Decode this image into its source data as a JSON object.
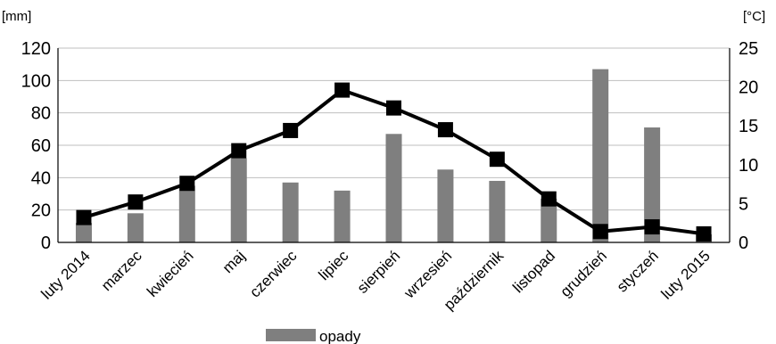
{
  "chart_data": {
    "type": "bar+line",
    "categories": [
      "luty 2014",
      "marzec",
      "kwiecień",
      "maj",
      "czerwiec",
      "lipiec",
      "sierpień",
      "wrzesień",
      "październik",
      "listopad",
      "grudzień",
      "styczeń",
      "luty 2015"
    ],
    "series": [
      {
        "name": "opady",
        "type": "bar",
        "axis": "left",
        "color": "#7f7f7f",
        "values": [
          12,
          18,
          35,
          52,
          37,
          32,
          67,
          45,
          38,
          27,
          107,
          71,
          5
        ]
      },
      {
        "type": "line",
        "axis": "right",
        "color": "#000000",
        "marker": "square",
        "values": [
          3.2,
          5.2,
          7.6,
          11.8,
          14.4,
          19.6,
          17.3,
          14.5,
          10.7,
          5.6,
          1.4,
          2.0,
          1.1
        ]
      }
    ],
    "y_left": {
      "unit": "[mm]",
      "ylim": [
        0,
        120
      ],
      "ticks": [
        "0",
        "20",
        "40",
        "60",
        "80",
        "100",
        "120"
      ]
    },
    "y_right": {
      "unit": "[°C]",
      "ylim": [
        0,
        25
      ],
      "ticks": [
        "0",
        "5",
        "10",
        "15",
        "20",
        "25"
      ]
    },
    "grid": "horizontal",
    "legend": {
      "position": "bottom",
      "entries": [
        "opady"
      ]
    }
  }
}
